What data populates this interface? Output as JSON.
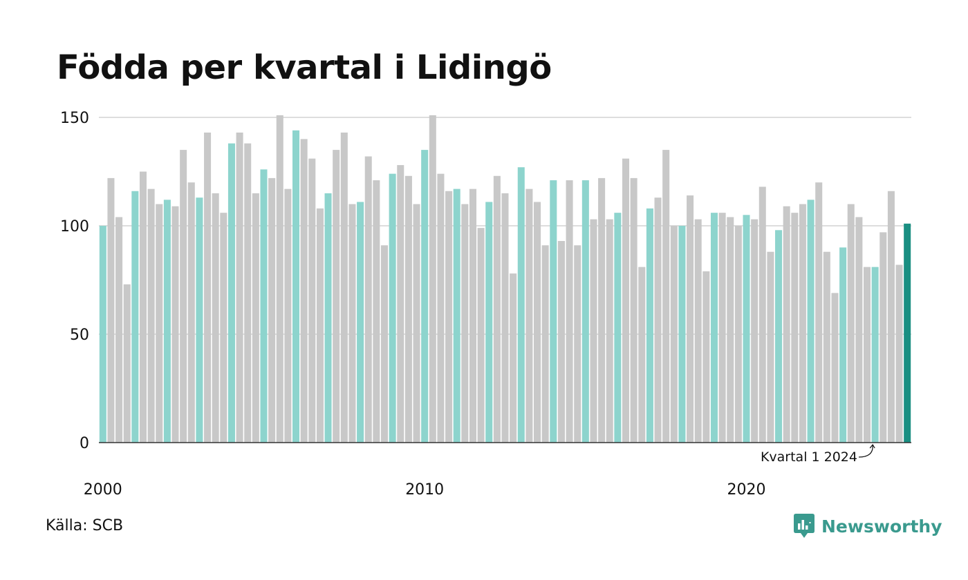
{
  "chart_data": {
    "type": "bar",
    "title": "Födda per kvartal i Lidingö",
    "xlabel": "",
    "ylabel": "",
    "ylim": [
      0,
      150
    ],
    "yticks": [
      0,
      50,
      100,
      150
    ],
    "xtick_labels": [
      "2000",
      "2010",
      "2020"
    ],
    "start_year": 2000,
    "grid": true,
    "annotation": "Kvartal 1 2024",
    "colors": {
      "first_quarter": "#8dd4cd",
      "other_quarters": "#c8c8c8",
      "latest": "#1a8f82",
      "axis": "#333333",
      "grid": "#dddddd"
    },
    "values": [
      100,
      122,
      104,
      73,
      116,
      125,
      117,
      110,
      112,
      109,
      135,
      120,
      113,
      143,
      115,
      106,
      138,
      143,
      138,
      115,
      126,
      122,
      151,
      117,
      144,
      140,
      131,
      108,
      115,
      135,
      143,
      110,
      111,
      132,
      121,
      91,
      124,
      128,
      123,
      110,
      135,
      151,
      124,
      116,
      117,
      110,
      117,
      99,
      111,
      123,
      115,
      78,
      127,
      117,
      111,
      91,
      121,
      93,
      121,
      91,
      121,
      103,
      122,
      103,
      106,
      131,
      122,
      81,
      108,
      113,
      135,
      100,
      100,
      114,
      103,
      79,
      106,
      106,
      104,
      100,
      105,
      103,
      118,
      88,
      98,
      109,
      106,
      110,
      112,
      120,
      88,
      69,
      90,
      110,
      104,
      81,
      81,
      97,
      116,
      82,
      101
    ]
  },
  "source": "Källa: SCB",
  "brand": {
    "name": "Newsworthy",
    "color": "#3a9a8e",
    "logo_icon": "newsworthy-chart-bubble-icon"
  }
}
